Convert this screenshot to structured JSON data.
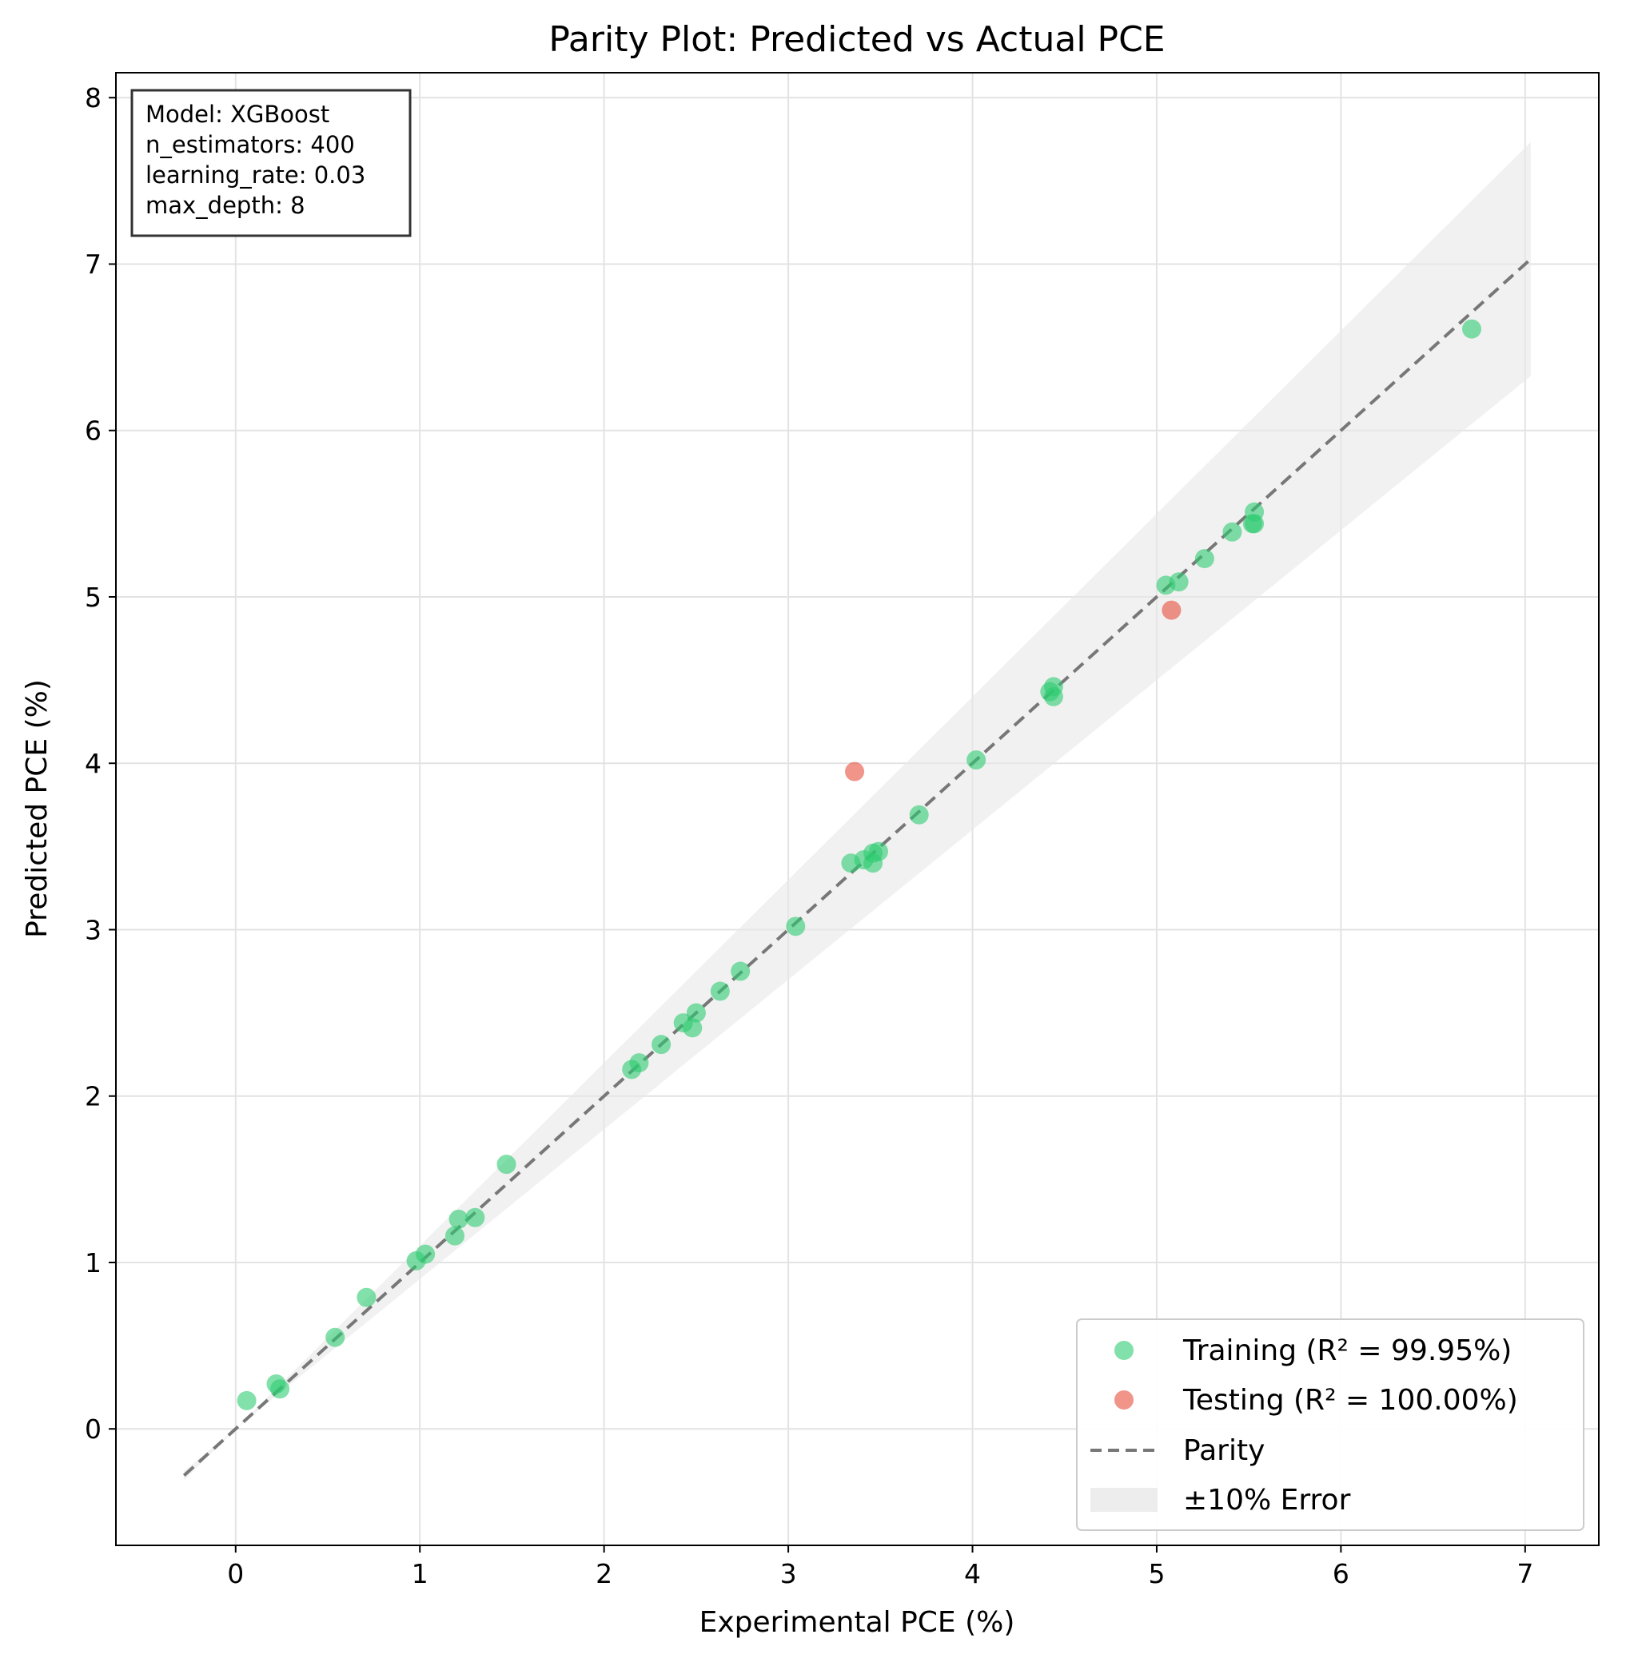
{
  "chart_data": {
    "type": "scatter",
    "title": "Parity Plot: Predicted vs Actual PCE",
    "xlabel": "Experimental PCE (%)",
    "ylabel": "Predicted PCE (%)",
    "xlim": [
      -0.65,
      7.4
    ],
    "ylim": [
      -0.7,
      8.15
    ],
    "x_ticks": [
      0,
      1,
      2,
      3,
      4,
      5,
      6,
      7
    ],
    "y_ticks": [
      0,
      1,
      2,
      3,
      4,
      5,
      6,
      7,
      8
    ],
    "grid": true,
    "legend_position": "lower-right",
    "annotation_box": {
      "position": "top-left",
      "lines": [
        "Model: XGBoost",
        "n_estimators: 400",
        "learning_rate: 0.03",
        "max_depth: 8"
      ]
    },
    "series": [
      {
        "name": "Training (R² = 99.95%)",
        "kind": "scatter",
        "color": "#2ecc71",
        "points": [
          [
            0.06,
            0.17
          ],
          [
            0.22,
            0.27
          ],
          [
            0.24,
            0.24
          ],
          [
            0.54,
            0.55
          ],
          [
            0.71,
            0.79
          ],
          [
            0.98,
            1.01
          ],
          [
            1.03,
            1.05
          ],
          [
            1.19,
            1.16
          ],
          [
            1.21,
            1.26
          ],
          [
            1.3,
            1.27
          ],
          [
            1.47,
            1.59
          ],
          [
            2.15,
            2.16
          ],
          [
            2.19,
            2.2
          ],
          [
            2.31,
            2.31
          ],
          [
            2.43,
            2.44
          ],
          [
            2.48,
            2.41
          ],
          [
            2.5,
            2.5
          ],
          [
            2.63,
            2.63
          ],
          [
            2.74,
            2.75
          ],
          [
            3.04,
            3.02
          ],
          [
            3.34,
            3.4
          ],
          [
            3.41,
            3.42
          ],
          [
            3.46,
            3.4
          ],
          [
            3.46,
            3.46
          ],
          [
            3.49,
            3.47
          ],
          [
            3.71,
            3.69
          ],
          [
            4.02,
            4.02
          ],
          [
            4.42,
            4.43
          ],
          [
            4.44,
            4.46
          ],
          [
            4.44,
            4.4
          ],
          [
            5.05,
            5.07
          ],
          [
            5.12,
            5.09
          ],
          [
            5.26,
            5.23
          ],
          [
            5.41,
            5.39
          ],
          [
            5.52,
            5.44
          ],
          [
            5.53,
            5.51
          ],
          [
            5.53,
            5.44
          ],
          [
            6.71,
            6.61
          ]
        ]
      },
      {
        "name": "Testing (R² = 100.00%)",
        "kind": "scatter",
        "color": "#e74c3c",
        "points": [
          [
            3.36,
            3.95
          ],
          [
            5.08,
            4.92
          ]
        ]
      },
      {
        "name": "Parity",
        "kind": "line",
        "color": "#777777",
        "dash": "dashed",
        "x": [
          -0.28,
          7.03
        ],
        "y": [
          -0.28,
          7.03
        ]
      },
      {
        "name": "±10% Error",
        "kind": "band",
        "color": "#e8e8e8",
        "x": [
          -0.28,
          7.03
        ],
        "relative_error": 0.1
      }
    ]
  }
}
